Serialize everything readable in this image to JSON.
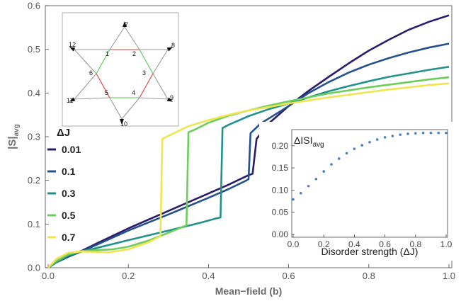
{
  "chart_data": [
    {
      "type": "line",
      "xlabel": "Mean−field (b)",
      "ylabel_main": "|S|",
      "ylabel_sub": "avg",
      "xlim": [
        0,
        1.0
      ],
      "ylim": [
        0,
        0.6
      ],
      "xticks": [
        0.0,
        0.2,
        0.4,
        0.6,
        0.8,
        1.0
      ],
      "xtick_labels": [
        "0.0",
        "0.2",
        "0.4",
        "0.6",
        "0.8",
        "1.0"
      ],
      "yticks": [
        0.0,
        0.1,
        0.2,
        0.3,
        0.4,
        0.5,
        0.6
      ],
      "ytick_labels": [
        "0.0",
        "0.1",
        "0.2",
        "0.3",
        "0.4",
        "0.5",
        "0.6"
      ],
      "legend_title": "ΔJ",
      "legend_position": "left",
      "series": [
        {
          "name": "0.01",
          "color": "#2a1b6b",
          "x": [
            0.0,
            0.02,
            0.05,
            0.08,
            0.12,
            0.2,
            0.3,
            0.4,
            0.45,
            0.5,
            0.51,
            0.52,
            0.55,
            0.6,
            0.65,
            0.7,
            0.75,
            0.8,
            0.85,
            0.9,
            0.95,
            1.0
          ],
          "y": [
            0.0,
            0.012,
            0.025,
            0.037,
            0.055,
            0.09,
            0.13,
            0.17,
            0.19,
            0.212,
            0.215,
            0.295,
            0.33,
            0.37,
            0.405,
            0.437,
            0.468,
            0.497,
            0.522,
            0.545,
            0.563,
            0.578
          ]
        },
        {
          "name": "0.1",
          "color": "#24508e",
          "x": [
            0.0,
            0.02,
            0.05,
            0.08,
            0.12,
            0.2,
            0.3,
            0.4,
            0.45,
            0.495,
            0.5,
            0.505,
            0.53,
            0.6,
            0.65,
            0.7,
            0.75,
            0.8,
            0.85,
            0.9,
            0.95,
            1.0
          ],
          "y": [
            0.0,
            0.012,
            0.025,
            0.036,
            0.052,
            0.085,
            0.122,
            0.16,
            0.18,
            0.2,
            0.203,
            0.308,
            0.33,
            0.37,
            0.4,
            0.425,
            0.447,
            0.465,
            0.48,
            0.493,
            0.504,
            0.513
          ]
        },
        {
          "name": "0.3",
          "color": "#21918c",
          "x": [
            0.0,
            0.02,
            0.05,
            0.08,
            0.12,
            0.2,
            0.3,
            0.38,
            0.42,
            0.43,
            0.435,
            0.45,
            0.5,
            0.55,
            0.6,
            0.65,
            0.7,
            0.75,
            0.8,
            0.85,
            0.9,
            0.95,
            1.0
          ],
          "y": [
            0.0,
            0.012,
            0.028,
            0.036,
            0.045,
            0.063,
            0.085,
            0.103,
            0.113,
            0.115,
            0.32,
            0.327,
            0.347,
            0.363,
            0.376,
            0.39,
            0.404,
            0.416,
            0.427,
            0.437,
            0.445,
            0.453,
            0.46
          ]
        },
        {
          "name": "0.5",
          "color": "#6ccd5a",
          "x": [
            0.0,
            0.02,
            0.05,
            0.08,
            0.12,
            0.16,
            0.2,
            0.25,
            0.3,
            0.345,
            0.35,
            0.37,
            0.4,
            0.45,
            0.5,
            0.55,
            0.6,
            0.65,
            0.7,
            0.75,
            0.8,
            0.85,
            0.9,
            0.95,
            1.0
          ],
          "y": [
            0.0,
            0.015,
            0.03,
            0.038,
            0.04,
            0.042,
            0.048,
            0.062,
            0.08,
            0.097,
            0.31,
            0.318,
            0.332,
            0.348,
            0.36,
            0.371,
            0.381,
            0.39,
            0.399,
            0.406,
            0.413,
            0.419,
            0.425,
            0.431,
            0.436
          ]
        },
        {
          "name": "0.7",
          "color": "#f0e450",
          "x": [
            0.0,
            0.02,
            0.05,
            0.08,
            0.12,
            0.15,
            0.2,
            0.25,
            0.28,
            0.285,
            0.3,
            0.35,
            0.4,
            0.45,
            0.5,
            0.55,
            0.6,
            0.65,
            0.7,
            0.75,
            0.8,
            0.85,
            0.9,
            0.95,
            1.0
          ],
          "y": [
            0.0,
            0.02,
            0.034,
            0.037,
            0.036,
            0.035,
            0.042,
            0.058,
            0.072,
            0.295,
            0.302,
            0.324,
            0.338,
            0.35,
            0.36,
            0.368,
            0.376,
            0.383,
            0.39,
            0.396,
            0.402,
            0.408,
            0.413,
            0.418,
            0.422
          ]
        }
      ]
    },
    {
      "type": "scatter",
      "title_main": "ΔISI",
      "title_sub": "avg",
      "xlabel": "Disorder strength (ΔJ)",
      "xlim": [
        0,
        1.0
      ],
      "ylim": [
        0,
        0.23
      ],
      "xticks": [
        0.0,
        0.2,
        0.4,
        0.6,
        0.8,
        1.0
      ],
      "xtick_labels": [
        "0.0",
        "0.2",
        "0.4",
        "0.6",
        "0.8",
        "1.0"
      ],
      "yticks": [
        0.0,
        0.05,
        0.1,
        0.15,
        0.2
      ],
      "ytick_labels": [
        "0.00",
        "0.05",
        "0.10",
        "0.15",
        "0.20"
      ],
      "color": "#4a7fc0",
      "x": [
        0.0,
        0.05,
        0.1,
        0.15,
        0.2,
        0.25,
        0.3,
        0.35,
        0.4,
        0.45,
        0.5,
        0.55,
        0.6,
        0.65,
        0.7,
        0.75,
        0.8,
        0.85,
        0.9,
        0.95,
        1.0
      ],
      "y": [
        0.079,
        0.093,
        0.109,
        0.125,
        0.142,
        0.158,
        0.171,
        0.183,
        0.193,
        0.201,
        0.208,
        0.214,
        0.219,
        0.222,
        0.225,
        0.227,
        0.228,
        0.229,
        0.229,
        0.229,
        0.229
      ]
    }
  ],
  "kagome": {
    "labels": [
      "1",
      "2",
      "3",
      "4",
      "5",
      "6",
      "7",
      "8",
      "9",
      "10",
      "11",
      "12"
    ],
    "bond_colors": {
      "plain": "#9a9a9a",
      "red": "#e03c3c",
      "green": "#4ccc4c"
    }
  }
}
